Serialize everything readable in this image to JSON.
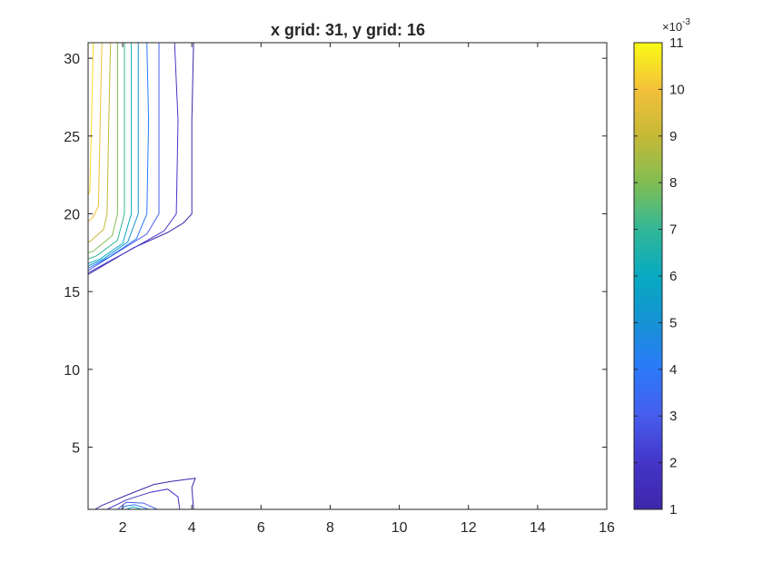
{
  "chart_data": {
    "type": "contour",
    "title": "x grid: 31, y grid: 16",
    "xlabel": "",
    "ylabel": "",
    "xlim": [
      1,
      16
    ],
    "ylim": [
      1,
      31
    ],
    "xticks": [
      "2",
      "4",
      "6",
      "8",
      "10",
      "12",
      "14",
      "16"
    ],
    "yticks": [
      "5",
      "10",
      "15",
      "20",
      "25",
      "30"
    ],
    "colorbar": {
      "label": "",
      "exponent_base": "×10",
      "exponent_power": "-3",
      "range": [
        1,
        11
      ],
      "ticks": [
        "1",
        "2",
        "3",
        "4",
        "5",
        "6",
        "7",
        "8",
        "9",
        "10",
        "11"
      ],
      "colormap": "parula"
    },
    "grid": false,
    "contour_levels": [
      1,
      2,
      3,
      4,
      5,
      6,
      7,
      8,
      9,
      10,
      11
    ],
    "contours": [
      {
        "level": 1,
        "color": "#3e26a8",
        "points": [
          [
            4.05,
            31
          ],
          [
            4.0,
            26
          ],
          [
            4.0,
            20
          ],
          [
            3.75,
            19.4
          ],
          [
            3.3,
            18.8
          ],
          [
            2.3,
            17.8
          ],
          [
            1,
            16.1
          ]
        ]
      },
      {
        "level": 2,
        "color": "#4435c9",
        "points": [
          [
            3.5,
            31
          ],
          [
            3.6,
            26
          ],
          [
            3.55,
            20
          ],
          [
            3.2,
            18.9
          ],
          [
            2.4,
            17.9
          ],
          [
            1,
            16.2
          ]
        ]
      },
      {
        "level": 3,
        "color": "#465ded",
        "points": [
          [
            3.05,
            31
          ],
          [
            3.05,
            26
          ],
          [
            3.05,
            20
          ],
          [
            2.7,
            18.7
          ],
          [
            1.9,
            17.6
          ],
          [
            1,
            16.35
          ]
        ]
      },
      {
        "level": 4,
        "color": "#2c79fa",
        "points": [
          [
            2.7,
            31
          ],
          [
            2.75,
            26
          ],
          [
            2.7,
            20
          ],
          [
            2.4,
            18.4
          ],
          [
            1.6,
            17.2
          ],
          [
            1,
            16.5
          ]
        ]
      },
      {
        "level": 5,
        "color": "#1692d4",
        "points": [
          [
            2.45,
            31
          ],
          [
            2.45,
            26
          ],
          [
            2.45,
            20
          ],
          [
            2.15,
            18.2
          ],
          [
            1.45,
            17.1
          ],
          [
            1,
            16.65
          ]
        ]
      },
      {
        "level": 6,
        "color": "#07aac1",
        "points": [
          [
            2.25,
            31
          ],
          [
            2.25,
            26
          ],
          [
            2.25,
            20
          ],
          [
            2.0,
            18.1
          ],
          [
            1.35,
            17.1
          ],
          [
            1,
            16.8
          ]
        ]
      },
      {
        "level": 7,
        "color": "#32b797",
        "points": [
          [
            2.05,
            31
          ],
          [
            2.05,
            26
          ],
          [
            2.05,
            20
          ],
          [
            1.85,
            18.3
          ],
          [
            1.25,
            17.3
          ],
          [
            1,
            17.1
          ]
        ]
      },
      {
        "level": 8,
        "color": "#81bd52",
        "points": [
          [
            1.85,
            31
          ],
          [
            1.85,
            26
          ],
          [
            1.85,
            20
          ],
          [
            1.7,
            18.6
          ],
          [
            1.15,
            17.6
          ],
          [
            1,
            17.5
          ]
        ]
      },
      {
        "level": 9,
        "color": "#c5b936",
        "points": [
          [
            1.65,
            31
          ],
          [
            1.6,
            26
          ],
          [
            1.55,
            20
          ],
          [
            1.45,
            19.0
          ],
          [
            1.05,
            18.2
          ],
          [
            1,
            18.2
          ]
        ]
      },
      {
        "level": 10,
        "color": "#f4c03a",
        "points": [
          [
            1.4,
            31
          ],
          [
            1.35,
            26
          ],
          [
            1.3,
            20.5
          ],
          [
            1.15,
            19.8
          ],
          [
            1,
            19.5
          ]
        ]
      },
      {
        "level": 11,
        "color": "#f9dd25",
        "points": [
          [
            1.15,
            31
          ],
          [
            1.1,
            26
          ],
          [
            1.05,
            21.5
          ],
          [
            1,
            21.2
          ]
        ]
      },
      {
        "level": 1,
        "color": "#3e26a8",
        "points": [
          [
            4.05,
            1
          ],
          [
            4.0,
            2.4
          ],
          [
            4.1,
            3.0
          ],
          [
            3.4,
            2.8
          ],
          [
            2.9,
            2.6
          ],
          [
            2.1,
            1.9
          ],
          [
            1.4,
            1.25
          ],
          [
            1.2,
            1
          ]
        ]
      },
      {
        "level": 2,
        "color": "#4435c9",
        "points": [
          [
            3.65,
            1
          ],
          [
            3.6,
            1.8
          ],
          [
            3.3,
            2.3
          ],
          [
            2.8,
            2.1
          ],
          [
            2.1,
            1.6
          ],
          [
            1.55,
            1
          ]
        ]
      },
      {
        "level": 3,
        "color": "#465ded",
        "points": [
          [
            3.0,
            1
          ],
          [
            2.6,
            1.4
          ],
          [
            2.1,
            1.45
          ],
          [
            1.85,
            1
          ]
        ]
      },
      {
        "level": 4,
        "color": "#2c79fa",
        "points": [
          [
            2.75,
            1
          ],
          [
            2.35,
            1.3
          ],
          [
            2.05,
            1.2
          ],
          [
            1.95,
            1
          ]
        ]
      },
      {
        "level": 5,
        "color": "#07aac1",
        "points": [
          [
            2.55,
            1
          ],
          [
            2.3,
            1.15
          ],
          [
            2.1,
            1
          ]
        ]
      }
    ]
  }
}
